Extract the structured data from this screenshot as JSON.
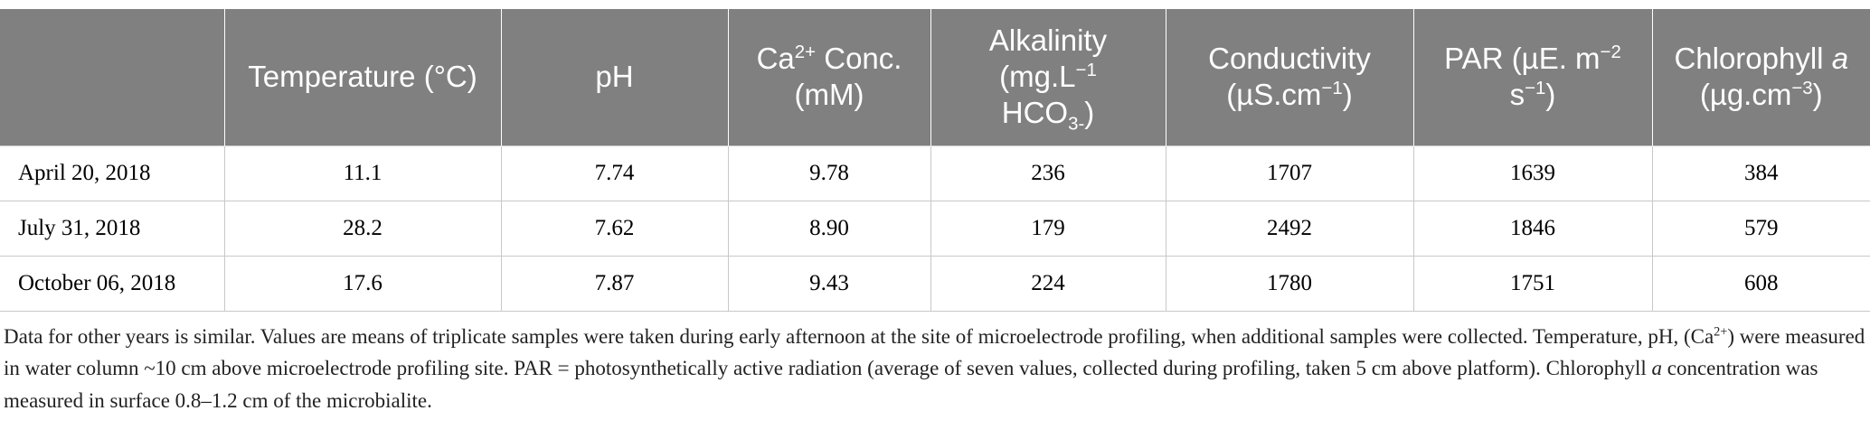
{
  "table": {
    "headers": [
      [
        {
          "text": "Temperature (°C)"
        }
      ],
      [
        {
          "text": "pH"
        }
      ],
      [
        {
          "text": "Ca"
        },
        {
          "text": "2+",
          "sup": true
        },
        {
          "text": " Conc. (mM)"
        }
      ],
      [
        {
          "text": "Alkalinity (mg.L"
        },
        {
          "text": "−1",
          "sup": true
        },
        {
          "text": " HCO"
        },
        {
          "text": "3-",
          "sub": true
        },
        {
          "text": ")"
        }
      ],
      [
        {
          "text": "Conductivity (µS.cm"
        },
        {
          "text": "−1",
          "sup": true
        },
        {
          "text": ")"
        }
      ],
      [
        {
          "text": "PAR (µE. m"
        },
        {
          "text": "−2",
          "sup": true
        },
        {
          "text": " s"
        },
        {
          "text": "−1",
          "sup": true
        },
        {
          "text": ")"
        }
      ],
      [
        {
          "text": "Chlorophyll "
        },
        {
          "text": "a",
          "italic": true
        },
        {
          "text": " (µg.cm"
        },
        {
          "text": "−3",
          "sup": true
        },
        {
          "text": ")"
        }
      ]
    ],
    "rows": [
      [
        "April 20, 2018",
        "11.1",
        "7.74",
        "9.78",
        "236",
        "1707",
        "1639",
        "384"
      ],
      [
        "July 31, 2018",
        "28.2",
        "7.62",
        "8.90",
        "179",
        "2492",
        "1846",
        "579"
      ],
      [
        "October 06, 2018",
        "17.6",
        "7.87",
        "9.43",
        "224",
        "1780",
        "1751",
        "608"
      ]
    ]
  },
  "footnote": [
    {
      "text": "Data for other years is similar. Values are means of triplicate samples were taken during early afternoon at the site of microelectrode profiling, when additional samples were collected. Temperature, pH, (Ca"
    },
    {
      "text": "2+",
      "sup": true
    },
    {
      "text": ") were measured in water column ~10 cm above microelectrode profiling site. PAR = photosynthetically active radiation (average of seven values, collected during profiling, taken 5 cm above platform). Chlorophyll "
    },
    {
      "text": "a",
      "italic": true
    },
    {
      "text": " concentration was measured in surface 0.8–1.2 cm of the microbialite."
    }
  ]
}
